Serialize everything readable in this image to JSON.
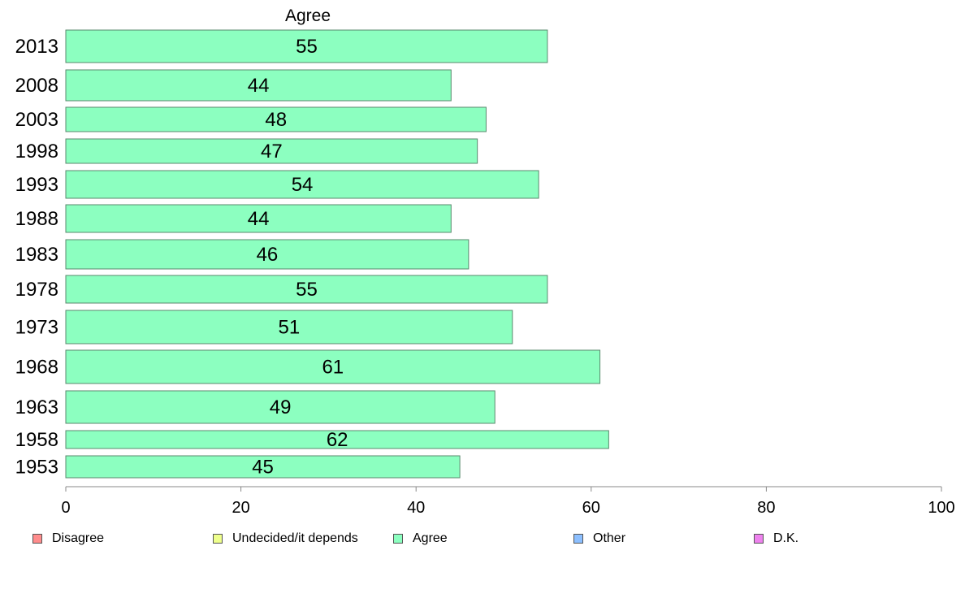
{
  "chart_data": {
    "type": "bar",
    "orientation": "horizontal",
    "title": "Agree",
    "categories": [
      "2013",
      "2008",
      "2003",
      "1998",
      "1993",
      "1988",
      "1983",
      "1978",
      "1973",
      "1968",
      "1963",
      "1958",
      "1953"
    ],
    "series": [
      {
        "name": "Agree",
        "values": [
          55,
          44,
          48,
          47,
          54,
          44,
          46,
          55,
          51,
          61,
          49,
          62,
          45
        ]
      }
    ],
    "data_labels": [
      "55",
      "44",
      "48",
      "47",
      "54",
      "44",
      "46",
      "55",
      "51",
      "61",
      "49",
      "62",
      "45"
    ],
    "xlim": [
      0,
      100
    ],
    "xticks": [
      "0",
      "20",
      "40",
      "60",
      "80",
      "100"
    ],
    "grid": false,
    "legend_position": "bottom"
  },
  "colors": {
    "Disagree": "#ff8c8c",
    "Undecided/it depends": "#eeff8c",
    "Agree": "#8cffc0",
    "Other": "#8cbfff",
    "D.K.": "#ee82ee",
    "bar_border": "#5a8a6e",
    "axis": "#888888"
  },
  "legend": {
    "items": [
      {
        "label": "Disagree",
        "color": "#ff8c8c"
      },
      {
        "label": "Undecided/it depends",
        "color": "#eeff8c"
      },
      {
        "label": "Agree",
        "color": "#8cffc0"
      },
      {
        "label": "Other",
        "color": "#8cbfff"
      },
      {
        "label": "D.K.",
        "color": "#ee82ee"
      }
    ]
  }
}
